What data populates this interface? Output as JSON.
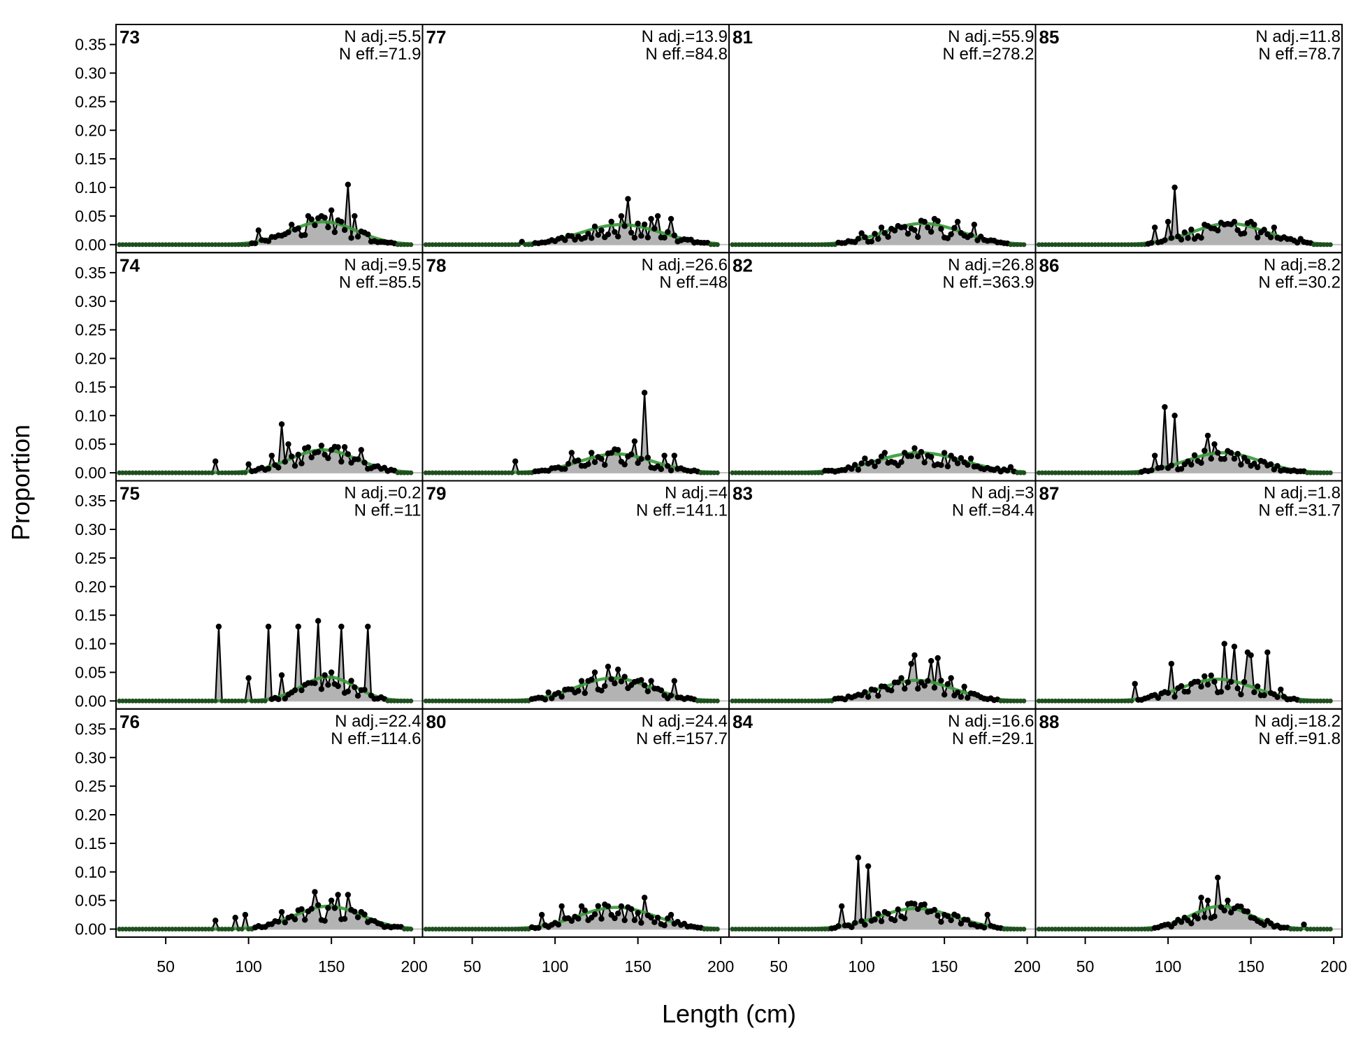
{
  "chart_data": {
    "type": "line",
    "xlabel": "Length (cm)",
    "ylabel": "Proportion",
    "x_ticks": [
      50,
      100,
      150,
      200
    ],
    "y_ticks": [
      0.0,
      0.05,
      0.1,
      0.15,
      0.2,
      0.25,
      0.3,
      0.35
    ],
    "y_tick_labels": [
      "0.00",
      "0.05",
      "0.10",
      "0.15",
      "0.20",
      "0.25",
      "0.30",
      "0.35"
    ],
    "x_range": [
      20,
      205
    ],
    "y_range": [
      -0.014,
      0.385
    ],
    "grid": false,
    "layout": "4x4 panels, columns-first",
    "colors": {
      "observed_fill": "#b3b3b3",
      "observed_line": "#000000",
      "expected_line": "#3a9a3a",
      "zero_line": "#c0c0c0"
    },
    "panels": [
      {
        "id": "73",
        "n_adj": "N adj.=5.5",
        "n_eff": "N eff.=71.9",
        "observed_peaks": [
          [
            103,
            0.04
          ],
          [
            106,
            0.025
          ],
          [
            126,
            0.035
          ],
          [
            136,
            0.05
          ],
          [
            144,
            0.05
          ],
          [
            150,
            0.06
          ],
          [
            156,
            0.04
          ],
          [
            160,
            0.105
          ],
          [
            164,
            0.05
          ]
        ],
        "expected": {
          "mean": 145,
          "sd": 20,
          "peak": 0.04
        }
      },
      {
        "id": "74",
        "n_adj": "N adj.=9.5",
        "n_eff": "N eff.=85.5",
        "observed_peaks": [
          [
            80,
            0.02
          ],
          [
            100,
            0.015
          ],
          [
            114,
            0.03
          ],
          [
            120,
            0.085
          ],
          [
            124,
            0.05
          ],
          [
            140,
            0.035
          ],
          [
            150,
            0.04
          ],
          [
            158,
            0.045
          ],
          [
            168,
            0.04
          ]
        ],
        "expected": {
          "mean": 145,
          "sd": 20,
          "peak": 0.04
        }
      },
      {
        "id": "75",
        "n_adj": "N adj.=0.2",
        "n_eff": "N eff.=11",
        "observed_peaks": [
          [
            82,
            0.13
          ],
          [
            100,
            0.04
          ],
          [
            112,
            0.13
          ],
          [
            120,
            0.045
          ],
          [
            130,
            0.13
          ],
          [
            142,
            0.14
          ],
          [
            150,
            0.05
          ],
          [
            156,
            0.13
          ],
          [
            172,
            0.13
          ]
        ],
        "expected": {
          "mean": 148,
          "sd": 16,
          "peak": 0.042
        }
      },
      {
        "id": "76",
        "n_adj": "N adj.=22.4",
        "n_eff": "N eff.=114.6",
        "observed_peaks": [
          [
            80,
            0.015
          ],
          [
            92,
            0.02
          ],
          [
            98,
            0.025
          ],
          [
            120,
            0.03
          ],
          [
            132,
            0.035
          ],
          [
            140,
            0.065
          ],
          [
            150,
            0.05
          ],
          [
            154,
            0.06
          ],
          [
            160,
            0.06
          ],
          [
            168,
            0.03
          ]
        ],
        "expected": {
          "mean": 148,
          "sd": 20,
          "peak": 0.04
        }
      },
      {
        "id": "77",
        "n_adj": "N adj.=13.9",
        "n_eff": "N eff.=84.8",
        "observed_peaks": [
          [
            80,
            0.005
          ],
          [
            110,
            0.015
          ],
          [
            128,
            0.025
          ],
          [
            140,
            0.05
          ],
          [
            144,
            0.08
          ],
          [
            158,
            0.045
          ],
          [
            162,
            0.05
          ],
          [
            170,
            0.045
          ]
        ],
        "expected": {
          "mean": 140,
          "sd": 24,
          "peak": 0.035
        }
      },
      {
        "id": "78",
        "n_adj": "N adj.=26.6",
        "n_eff": "N eff.=48",
        "observed_peaks": [
          [
            76,
            0.02
          ],
          [
            110,
            0.035
          ],
          [
            122,
            0.035
          ],
          [
            138,
            0.04
          ],
          [
            148,
            0.055
          ],
          [
            154,
            0.14
          ],
          [
            166,
            0.03
          ],
          [
            172,
            0.03
          ]
        ],
        "expected": {
          "mean": 137,
          "sd": 22,
          "peak": 0.033
        }
      },
      {
        "id": "79",
        "n_adj": "N adj.=4",
        "n_eff": "N eff.=141.1",
        "observed_peaks": [
          [
            96,
            0.015
          ],
          [
            116,
            0.035
          ],
          [
            124,
            0.05
          ],
          [
            132,
            0.06
          ],
          [
            138,
            0.055
          ],
          [
            150,
            0.035
          ],
          [
            158,
            0.035
          ],
          [
            172,
            0.035
          ]
        ],
        "expected": {
          "mean": 135,
          "sd": 22,
          "peak": 0.04
        }
      },
      {
        "id": "80",
        "n_adj": "N adj.=24.4",
        "n_eff": "N eff.=157.7",
        "observed_peaks": [
          [
            92,
            0.025
          ],
          [
            104,
            0.04
          ],
          [
            116,
            0.04
          ],
          [
            132,
            0.04
          ],
          [
            140,
            0.04
          ],
          [
            154,
            0.055
          ],
          [
            170,
            0.025
          ]
        ],
        "expected": {
          "mean": 137,
          "sd": 23,
          "peak": 0.038
        }
      },
      {
        "id": "81",
        "n_adj": "N adj.=55.9",
        "n_eff": "N eff.=278.2",
        "observed_peaks": [
          [
            100,
            0.02
          ],
          [
            112,
            0.03
          ],
          [
            124,
            0.03
          ],
          [
            138,
            0.04
          ],
          [
            144,
            0.045
          ],
          [
            158,
            0.04
          ],
          [
            168,
            0.035
          ]
        ],
        "expected": {
          "mean": 137,
          "sd": 23,
          "peak": 0.037
        }
      },
      {
        "id": "82",
        "n_adj": "N adj.=26.8",
        "n_eff": "N eff.=363.9",
        "observed_peaks": [
          [
            102,
            0.025
          ],
          [
            114,
            0.035
          ],
          [
            126,
            0.035
          ],
          [
            140,
            0.03
          ],
          [
            154,
            0.03
          ],
          [
            166,
            0.025
          ],
          [
            190,
            0.01
          ]
        ],
        "expected": {
          "mean": 135,
          "sd": 26,
          "peak": 0.035
        }
      },
      {
        "id": "83",
        "n_adj": "N adj.=3",
        "n_eff": "N eff.=84.4",
        "observed_peaks": [
          [
            100,
            0.01
          ],
          [
            114,
            0.025
          ],
          [
            124,
            0.04
          ],
          [
            130,
            0.065
          ],
          [
            132,
            0.08
          ],
          [
            142,
            0.07
          ],
          [
            146,
            0.075
          ],
          [
            154,
            0.04
          ],
          [
            162,
            0.025
          ]
        ],
        "expected": {
          "mean": 133,
          "sd": 22,
          "peak": 0.036
        }
      },
      {
        "id": "84",
        "n_adj": "N adj.=16.6",
        "n_eff": "N eff.=29.1",
        "observed_peaks": [
          [
            88,
            0.04
          ],
          [
            98,
            0.125
          ],
          [
            104,
            0.11
          ],
          [
            114,
            0.03
          ],
          [
            130,
            0.045
          ],
          [
            140,
            0.03
          ],
          [
            150,
            0.025
          ],
          [
            176,
            0.025
          ]
        ],
        "expected": {
          "mean": 133,
          "sd": 23,
          "peak": 0.036
        }
      },
      {
        "id": "85",
        "n_adj": "N adj.=11.8",
        "n_eff": "N eff.=78.7",
        "observed_peaks": [
          [
            92,
            0.03
          ],
          [
            100,
            0.04
          ],
          [
            104,
            0.1
          ],
          [
            122,
            0.035
          ],
          [
            134,
            0.035
          ],
          [
            140,
            0.04
          ],
          [
            150,
            0.04
          ],
          [
            164,
            0.03
          ],
          [
            180,
            0.01
          ]
        ],
        "expected": {
          "mean": 137,
          "sd": 22,
          "peak": 0.037
        }
      },
      {
        "id": "86",
        "n_adj": "N adj.=8.2",
        "n_eff": "N eff.=30.2",
        "observed_peaks": [
          [
            92,
            0.03
          ],
          [
            98,
            0.115
          ],
          [
            104,
            0.1
          ],
          [
            112,
            0.02
          ],
          [
            124,
            0.065
          ],
          [
            128,
            0.05
          ],
          [
            138,
            0.035
          ],
          [
            148,
            0.02
          ]
        ],
        "expected": {
          "mean": 133,
          "sd": 22,
          "peak": 0.035
        }
      },
      {
        "id": "87",
        "n_adj": "N adj.=1.8",
        "n_eff": "N eff.=31.7",
        "observed_peaks": [
          [
            80,
            0.03
          ],
          [
            102,
            0.065
          ],
          [
            120,
            0.025
          ],
          [
            134,
            0.1
          ],
          [
            140,
            0.095
          ],
          [
            148,
            0.085
          ],
          [
            150,
            0.08
          ],
          [
            160,
            0.085
          ],
          [
            168,
            0.02
          ]
        ],
        "expected": {
          "mean": 130,
          "sd": 22,
          "peak": 0.038
        }
      },
      {
        "id": "88",
        "n_adj": "N adj.=18.2",
        "n_eff": "N eff.=91.8",
        "observed_peaks": [
          [
            110,
            0.02
          ],
          [
            120,
            0.055
          ],
          [
            124,
            0.05
          ],
          [
            130,
            0.09
          ],
          [
            136,
            0.05
          ],
          [
            142,
            0.04
          ],
          [
            150,
            0.02
          ],
          [
            162,
            0.01
          ],
          [
            182,
            0.008
          ]
        ],
        "expected": {
          "mean": 132,
          "sd": 18,
          "peak": 0.04
        }
      }
    ]
  }
}
